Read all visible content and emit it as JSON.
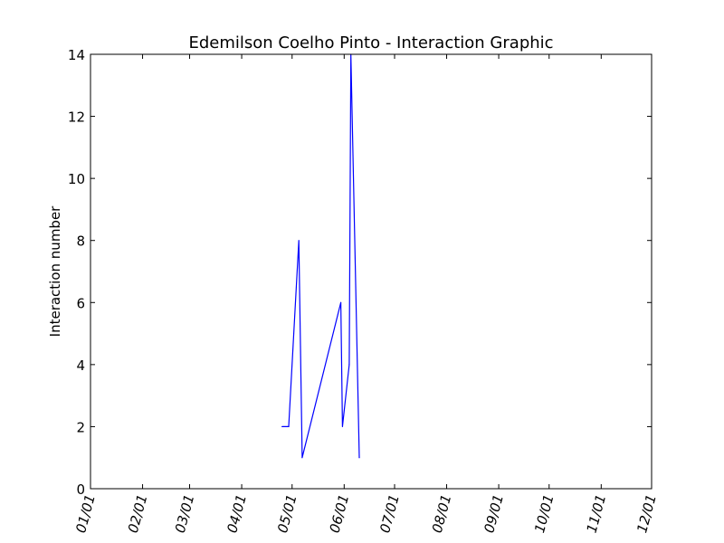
{
  "chart_data": {
    "type": "line",
    "title": "Edemilson Coelho Pinto - Interaction Graphic",
    "xlabel": "",
    "ylabel": "Interaction number",
    "xlim": [
      "01/01",
      "12/01"
    ],
    "ylim": [
      0,
      14
    ],
    "x_tick_labels": [
      "01/01",
      "02/01",
      "03/01",
      "04/01",
      "05/01",
      "06/01",
      "07/01",
      "08/01",
      "09/01",
      "10/01",
      "11/01",
      "12/01"
    ],
    "y_ticks": [
      0,
      2,
      4,
      6,
      8,
      10,
      12,
      14
    ],
    "grid": false,
    "series": [
      {
        "color": "#0000ff",
        "x": [
          "04/25",
          "04/29",
          "05/05",
          "05/07",
          "05/30",
          "05/31",
          "06/04",
          "06/05",
          "06/10"
        ],
        "y": [
          2,
          2,
          8,
          1,
          6,
          2,
          4,
          14,
          1
        ]
      }
    ]
  }
}
